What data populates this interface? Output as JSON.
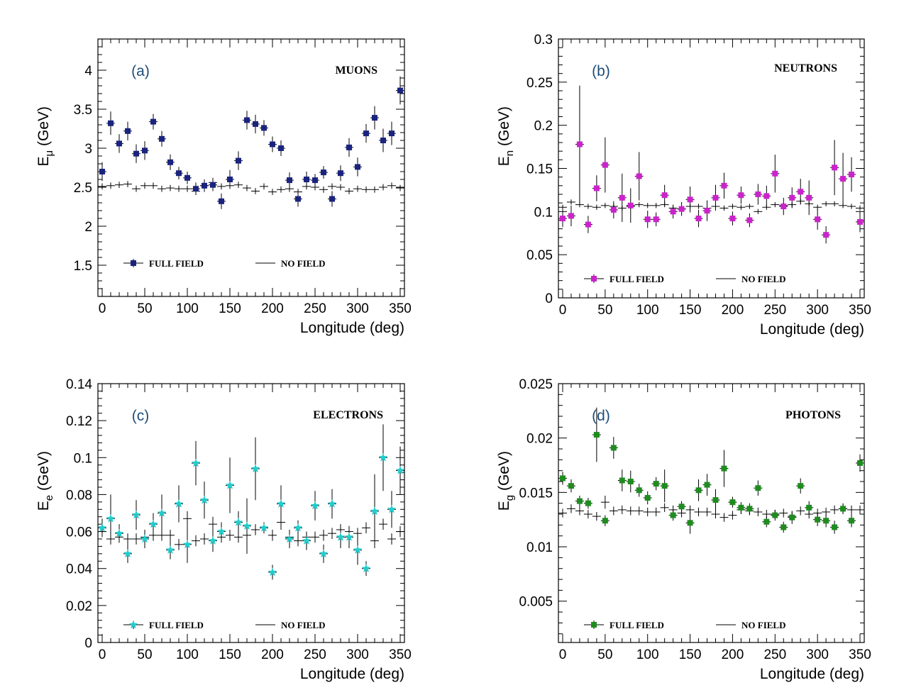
{
  "chart_data": [
    {
      "type": "scatter",
      "panel": "(a)",
      "title": "MUONS",
      "xlabel": "Longitude (deg)",
      "ylabel": "E",
      "ylabel_sub": "μ",
      "ylabel_unit": "(GeV)",
      "xlim": [
        -5,
        355
      ],
      "ylim": [
        1.1,
        4.4
      ],
      "xticks": [
        0,
        50,
        100,
        150,
        200,
        250,
        300,
        350
      ],
      "yticks": [
        1.5,
        2,
        2.5,
        3,
        3.5,
        4
      ],
      "ytick_labels": [
        "1.5",
        "2",
        "2.5",
        "3",
        "3.5",
        "4"
      ],
      "x": [
        0,
        10,
        20,
        30,
        40,
        50,
        60,
        70,
        80,
        90,
        100,
        110,
        120,
        130,
        140,
        150,
        160,
        170,
        180,
        190,
        200,
        210,
        220,
        230,
        240,
        250,
        260,
        270,
        280,
        290,
        300,
        310,
        320,
        330,
        340,
        350
      ],
      "series": [
        {
          "name": "FULL FIELD",
          "color": "#1a237e",
          "marker": "square",
          "values": [
            2.7,
            3.32,
            3.06,
            3.22,
            2.93,
            2.97,
            3.34,
            3.12,
            2.82,
            2.68,
            2.62,
            2.48,
            2.52,
            2.53,
            2.32,
            2.6,
            2.84,
            3.36,
            3.31,
            3.26,
            3.05,
            3.0,
            2.59,
            2.35,
            2.6,
            2.59,
            2.69,
            2.35,
            2.68,
            3.01,
            2.76,
            3.19,
            3.39,
            3.1,
            3.19,
            3.74
          ],
          "errors": [
            0.12,
            0.15,
            0.12,
            0.12,
            0.12,
            0.12,
            0.1,
            0.1,
            0.1,
            0.08,
            0.08,
            0.08,
            0.08,
            0.08,
            0.1,
            0.12,
            0.12,
            0.12,
            0.12,
            0.1,
            0.1,
            0.1,
            0.1,
            0.1,
            0.1,
            0.08,
            0.08,
            0.1,
            0.1,
            0.12,
            0.12,
            0.12,
            0.15,
            0.15,
            0.15,
            0.18
          ]
        },
        {
          "name": "NO FIELD",
          "color": "#000000",
          "marker": "cross",
          "values": [
            2.51,
            2.52,
            2.53,
            2.54,
            2.48,
            2.52,
            2.52,
            2.48,
            2.49,
            2.48,
            2.48,
            2.45,
            2.52,
            2.56,
            2.51,
            2.52,
            2.53,
            2.49,
            2.45,
            2.51,
            2.44,
            2.47,
            2.48,
            2.44,
            2.51,
            2.5,
            2.47,
            2.51,
            2.5,
            2.45,
            2.48,
            2.47,
            2.47,
            2.5,
            2.52,
            2.49
          ],
          "errors": [
            0.04,
            0.04,
            0.04,
            0.04,
            0.04,
            0.04,
            0.04,
            0.04,
            0.04,
            0.04,
            0.04,
            0.05,
            0.05,
            0.06,
            0.04,
            0.04,
            0.04,
            0.04,
            0.04,
            0.04,
            0.04,
            0.04,
            0.04,
            0.04,
            0.04,
            0.04,
            0.04,
            0.04,
            0.04,
            0.04,
            0.04,
            0.04,
            0.04,
            0.04,
            0.04,
            0.04
          ]
        }
      ]
    },
    {
      "type": "scatter",
      "panel": "(b)",
      "title": "NEUTRONS",
      "xlabel": "Longitude (deg)",
      "ylabel": "E",
      "ylabel_sub": "n",
      "ylabel_unit": "(GeV)",
      "xlim": [
        -5,
        355
      ],
      "ylim": [
        0,
        0.3
      ],
      "xticks": [
        0,
        50,
        100,
        150,
        200,
        250,
        300,
        350
      ],
      "yticks": [
        0,
        0.05,
        0.1,
        0.15,
        0.2,
        0.25,
        0.3
      ],
      "ytick_labels": [
        "0",
        "0.05",
        "0.1",
        "0.15",
        "0.2",
        "0.25",
        "0.3"
      ],
      "x": [
        0,
        10,
        20,
        30,
        40,
        50,
        60,
        70,
        80,
        90,
        100,
        110,
        120,
        130,
        140,
        150,
        160,
        170,
        180,
        190,
        200,
        210,
        220,
        230,
        240,
        250,
        260,
        270,
        280,
        290,
        300,
        310,
        320,
        330,
        340,
        350
      ],
      "series": [
        {
          "name": "FULL FIELD",
          "color": "#cc22cc",
          "marker": "square",
          "values": [
            0.092,
            0.095,
            0.178,
            0.085,
            0.127,
            0.154,
            0.102,
            0.116,
            0.107,
            0.141,
            0.091,
            0.091,
            0.119,
            0.1,
            0.103,
            0.114,
            0.092,
            0.101,
            0.116,
            0.13,
            0.092,
            0.119,
            0.09,
            0.12,
            0.118,
            0.144,
            0.106,
            0.116,
            0.123,
            0.116,
            0.091,
            0.073,
            0.151,
            0.138,
            0.143,
            0.088
          ],
          "errors": [
            0.01,
            0.012,
            0.068,
            0.01,
            0.015,
            0.032,
            0.01,
            0.028,
            0.02,
            0.028,
            0.01,
            0.008,
            0.012,
            0.008,
            0.008,
            0.015,
            0.01,
            0.012,
            0.015,
            0.015,
            0.008,
            0.01,
            0.008,
            0.012,
            0.012,
            0.022,
            0.01,
            0.012,
            0.015,
            0.02,
            0.012,
            0.01,
            0.032,
            0.03,
            0.02,
            0.012
          ]
        },
        {
          "name": "NO FIELD",
          "color": "#000000",
          "marker": "cross",
          "values": [
            0.105,
            0.111,
            0.108,
            0.106,
            0.105,
            0.107,
            0.106,
            0.104,
            0.106,
            0.108,
            0.107,
            0.107,
            0.108,
            0.104,
            0.103,
            0.106,
            0.106,
            0.104,
            0.106,
            0.104,
            0.106,
            0.105,
            0.106,
            0.1,
            0.105,
            0.108,
            0.107,
            0.108,
            0.112,
            0.109,
            0.105,
            0.109,
            0.109,
            0.107,
            0.106,
            0.104
          ],
          "errors": [
            0.003,
            0.003,
            0.003,
            0.003,
            0.003,
            0.003,
            0.003,
            0.003,
            0.003,
            0.003,
            0.003,
            0.003,
            0.003,
            0.003,
            0.003,
            0.003,
            0.003,
            0.003,
            0.003,
            0.003,
            0.003,
            0.003,
            0.003,
            0.003,
            0.003,
            0.003,
            0.003,
            0.003,
            0.003,
            0.003,
            0.003,
            0.003,
            0.003,
            0.003,
            0.003,
            0.003
          ]
        }
      ]
    },
    {
      "type": "scatter",
      "panel": "(c)",
      "title": "ELECTRONS",
      "xlabel": "Longitude (deg)",
      "ylabel": "E",
      "ylabel_sub": "e",
      "ylabel_unit": "(GeV)",
      "xlim": [
        -5,
        355
      ],
      "ylim": [
        0,
        0.14
      ],
      "xticks": [
        0,
        50,
        100,
        150,
        200,
        250,
        300,
        350
      ],
      "yticks": [
        0,
        0.02,
        0.04,
        0.06,
        0.08,
        0.1,
        0.12,
        0.14
      ],
      "ytick_labels": [
        "0",
        "0.02",
        "0.04",
        "0.06",
        "0.08",
        "0.1",
        "0.12",
        "0.14"
      ],
      "x": [
        0,
        10,
        20,
        30,
        40,
        50,
        60,
        70,
        80,
        90,
        100,
        110,
        120,
        130,
        140,
        150,
        160,
        170,
        180,
        190,
        200,
        210,
        220,
        230,
        240,
        250,
        260,
        270,
        280,
        290,
        300,
        310,
        320,
        330,
        340,
        350
      ],
      "series": [
        {
          "name": "FULL FIELD",
          "color": "#22cccc",
          "marker": "star",
          "values": [
            0.062,
            0.067,
            0.059,
            0.048,
            0.069,
            0.056,
            0.064,
            0.07,
            0.05,
            0.075,
            0.053,
            0.097,
            0.077,
            0.055,
            0.06,
            0.085,
            0.065,
            0.063,
            0.094,
            0.062,
            0.038,
            0.075,
            0.056,
            0.062,
            0.055,
            0.074,
            0.048,
            0.075,
            0.057,
            0.057,
            0.05,
            0.04,
            0.071,
            0.1,
            0.072,
            0.093
          ],
          "errors": [
            0.005,
            0.013,
            0.005,
            0.005,
            0.008,
            0.005,
            0.006,
            0.01,
            0.005,
            0.01,
            0.01,
            0.012,
            0.01,
            0.006,
            0.005,
            0.015,
            0.006,
            0.015,
            0.017,
            0.003,
            0.004,
            0.01,
            0.005,
            0.004,
            0.005,
            0.008,
            0.005,
            0.008,
            0.006,
            0.006,
            0.008,
            0.004,
            0.02,
            0.018,
            0.01,
            0.013
          ]
        },
        {
          "name": "NO FIELD",
          "color": "#000000",
          "marker": "cross",
          "values": [
            0.06,
            0.056,
            0.057,
            0.056,
            0.056,
            0.057,
            0.058,
            0.058,
            0.058,
            0.053,
            0.067,
            0.055,
            0.056,
            0.064,
            0.057,
            0.058,
            0.057,
            0.058,
            0.061,
            0.062,
            0.058,
            0.065,
            0.057,
            0.055,
            0.057,
            0.057,
            0.058,
            0.059,
            0.061,
            0.06,
            0.059,
            0.062,
            0.055,
            0.064,
            0.056,
            0.06
          ],
          "errors": [
            0.003,
            0.003,
            0.003,
            0.003,
            0.003,
            0.003,
            0.003,
            0.003,
            0.003,
            0.003,
            0.004,
            0.003,
            0.003,
            0.004,
            0.003,
            0.003,
            0.003,
            0.003,
            0.003,
            0.003,
            0.003,
            0.004,
            0.003,
            0.003,
            0.003,
            0.003,
            0.003,
            0.003,
            0.003,
            0.003,
            0.003,
            0.003,
            0.003,
            0.003,
            0.003,
            0.003
          ]
        }
      ]
    },
    {
      "type": "scatter",
      "panel": "(d)",
      "title": "PHOTONS",
      "xlabel": "Longitude (deg)",
      "ylabel": "E",
      "ylabel_sub": "g",
      "ylabel_unit": "(GeV)",
      "xlim": [
        -5,
        355
      ],
      "ylim": [
        0.0012,
        0.025
      ],
      "xticks": [
        0,
        50,
        100,
        150,
        200,
        250,
        300,
        350
      ],
      "yticks": [
        0.005,
        0.01,
        0.015,
        0.02,
        0.025
      ],
      "ytick_labels": [
        "0.005",
        "0.01",
        "0.015",
        "0.02",
        "0.025"
      ],
      "x": [
        0,
        10,
        20,
        30,
        40,
        50,
        60,
        70,
        80,
        90,
        100,
        110,
        120,
        130,
        140,
        150,
        160,
        170,
        180,
        190,
        200,
        210,
        220,
        230,
        240,
        250,
        260,
        270,
        280,
        290,
        300,
        310,
        320,
        330,
        340,
        350
      ],
      "series": [
        {
          "name": "FULL FIELD",
          "color": "#1e8c1e",
          "marker": "square",
          "values": [
            0.0163,
            0.0156,
            0.0142,
            0.014,
            0.0203,
            0.0124,
            0.0191,
            0.0161,
            0.016,
            0.0152,
            0.0145,
            0.0158,
            0.0156,
            0.0129,
            0.0137,
            0.0122,
            0.0152,
            0.0157,
            0.0143,
            0.0172,
            0.0141,
            0.0136,
            0.0135,
            0.0154,
            0.0123,
            0.0129,
            0.0118,
            0.0127,
            0.0156,
            0.0136,
            0.0125,
            0.0124,
            0.0118,
            0.0135,
            0.0124,
            0.0177
          ],
          "errors": [
            0.0006,
            0.0006,
            0.0005,
            0.0005,
            0.0025,
            0.0005,
            0.001,
            0.001,
            0.001,
            0.0006,
            0.0006,
            0.0006,
            0.0015,
            0.0005,
            0.0005,
            0.001,
            0.001,
            0.001,
            0.001,
            0.0017,
            0.0005,
            0.0005,
            0.0005,
            0.0007,
            0.0005,
            0.0005,
            0.0005,
            0.0006,
            0.0007,
            0.0006,
            0.0006,
            0.0006,
            0.0006,
            0.0005,
            0.0006,
            0.0008
          ]
        },
        {
          "name": "NO FIELD",
          "color": "#000000",
          "marker": "cross",
          "values": [
            0.0131,
            0.0135,
            0.0133,
            0.013,
            0.0128,
            0.0141,
            0.0133,
            0.0134,
            0.0133,
            0.0133,
            0.0132,
            0.0132,
            0.0136,
            0.0134,
            0.0131,
            0.0134,
            0.0132,
            0.0132,
            0.013,
            0.0127,
            0.0129,
            0.0134,
            0.0133,
            0.0132,
            0.013,
            0.013,
            0.0131,
            0.0128,
            0.0133,
            0.013,
            0.0131,
            0.0132,
            0.0134,
            0.0135,
            0.0134,
            0.0134
          ],
          "errors": [
            0.0004,
            0.0004,
            0.0004,
            0.0004,
            0.0004,
            0.0006,
            0.0004,
            0.0004,
            0.0004,
            0.0004,
            0.0004,
            0.0004,
            0.0004,
            0.0004,
            0.0004,
            0.0004,
            0.0004,
            0.0004,
            0.0004,
            0.0004,
            0.0004,
            0.0004,
            0.0004,
            0.0004,
            0.0004,
            0.0004,
            0.0004,
            0.0004,
            0.0004,
            0.0004,
            0.0004,
            0.0004,
            0.0004,
            0.0004,
            0.0004,
            0.0004
          ]
        }
      ]
    }
  ]
}
